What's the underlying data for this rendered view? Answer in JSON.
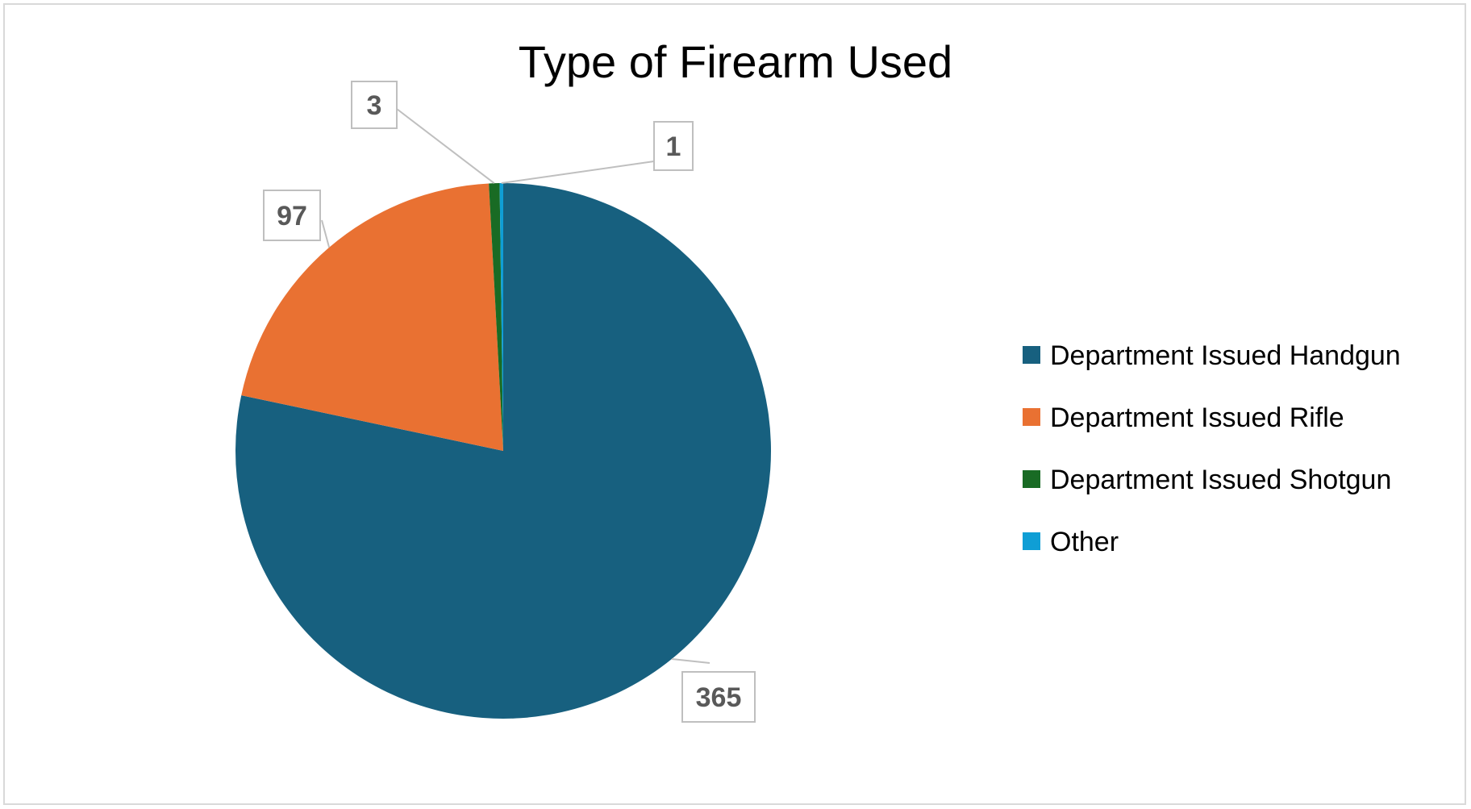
{
  "chart_data": {
    "type": "pie",
    "title": "Type of Firearm Used",
    "categories": [
      "Department Issued Handgun",
      "Department Issued Rifle",
      "Department Issued Shotgun",
      "Other"
    ],
    "values": [
      365,
      97,
      3,
      1
    ],
    "colors": [
      "#17607F",
      "#E97132",
      "#196B24",
      "#0F9ED5"
    ],
    "data_labels": [
      "365",
      "97",
      "3",
      "1"
    ],
    "legend_position": "right"
  }
}
